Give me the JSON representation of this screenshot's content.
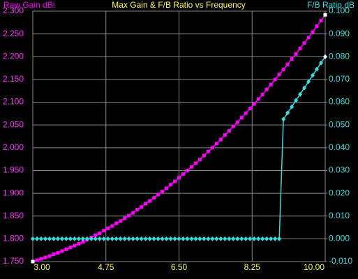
{
  "chart_data": {
    "type": "line",
    "title": "Max Gain & F/B Ratio vs Frequency",
    "ylabel": "Raw Gain dBi",
    "y2label": "F/B Ratio dB",
    "x": [
      3.0,
      3.1,
      3.2,
      3.3,
      3.4,
      3.5,
      3.6,
      3.7,
      3.8,
      3.9,
      4.0,
      4.1,
      4.2,
      4.3,
      4.4,
      4.5,
      4.6,
      4.7,
      4.8,
      4.9,
      5.0,
      5.1,
      5.2,
      5.3,
      5.4,
      5.5,
      5.6,
      5.7,
      5.8,
      5.9,
      6.0,
      6.1,
      6.2,
      6.3,
      6.4,
      6.5,
      6.6,
      6.7,
      6.8,
      6.9,
      7.0,
      7.1,
      7.2,
      7.3,
      7.4,
      7.5,
      7.6,
      7.7,
      7.8,
      7.9,
      8.0,
      8.1,
      8.2,
      8.3,
      8.4,
      8.5,
      8.6,
      8.7,
      8.8,
      8.9,
      9.0,
      9.1,
      9.2,
      9.3,
      9.4,
      9.5,
      9.6,
      9.7,
      9.8,
      9.9,
      10.0
    ],
    "series": [
      {
        "color": "#ff00ff",
        "marker": "square",
        "values": [
          1.75,
          1.753,
          1.756,
          1.759,
          1.762,
          1.766,
          1.769,
          1.773,
          1.777,
          1.781,
          1.785,
          1.789,
          1.793,
          1.798,
          1.803,
          1.808,
          1.812,
          1.818,
          1.823,
          1.828,
          1.834,
          1.839,
          1.845,
          1.851,
          1.857,
          1.864,
          1.87,
          1.877,
          1.883,
          1.89,
          1.897,
          1.904,
          1.911,
          1.919,
          1.926,
          1.934,
          1.942,
          1.95,
          1.958,
          1.966,
          1.974,
          1.983,
          1.992,
          2.0,
          2.009,
          2.018,
          2.028,
          2.037,
          2.047,
          2.056,
          2.066,
          2.076,
          2.086,
          2.096,
          2.107,
          2.117,
          2.128,
          2.139,
          2.15,
          2.161,
          2.172,
          2.183,
          2.195,
          2.206,
          2.218,
          2.23,
          2.242,
          2.254,
          2.267,
          2.279,
          2.292
        ]
      },
      {
        "color": "#33e0e0",
        "marker": "diamond",
        "axis": "y2",
        "values": [
          0,
          0,
          0,
          0,
          0,
          0,
          0,
          0,
          0,
          0,
          0,
          0,
          0,
          0,
          0,
          0,
          0,
          0,
          0,
          0,
          0,
          0,
          0,
          0,
          0,
          0,
          0,
          0,
          0,
          0,
          0,
          0,
          0,
          0,
          0,
          0,
          0,
          0,
          0,
          0,
          0,
          0,
          0,
          0,
          0,
          0,
          0,
          0,
          0,
          0,
          0,
          0,
          0,
          0,
          0,
          0,
          0,
          0,
          0,
          0,
          0.0525,
          0.0553,
          0.058,
          0.0608,
          0.0635,
          0.0663,
          0.069,
          0.0718,
          0.0745,
          0.0773,
          0.08
        ]
      }
    ],
    "xlim": [
      3,
      10
    ],
    "xticks": [
      {
        "value": 3,
        "label": "3.00"
      },
      {
        "value": 4.75,
        "label": "4.75"
      },
      {
        "value": 6.5,
        "label": "6.50"
      },
      {
        "value": 8.25,
        "label": "8.25"
      },
      {
        "value": 10,
        "label": "10.00"
      }
    ],
    "ylim": [
      1.75,
      2.3
    ],
    "yticks": [
      {
        "value": 1.75,
        "label": "1.750"
      },
      {
        "value": 1.8,
        "label": "1.800"
      },
      {
        "value": 1.85,
        "label": "1.850"
      },
      {
        "value": 1.9,
        "label": "1.900"
      },
      {
        "value": 1.95,
        "label": "1.950"
      },
      {
        "value": 2.0,
        "label": "2.000"
      },
      {
        "value": 2.05,
        "label": "2.050"
      },
      {
        "value": 2.1,
        "label": "2.100"
      },
      {
        "value": 2.15,
        "label": "2.150"
      },
      {
        "value": 2.2,
        "label": "2.200"
      },
      {
        "value": 2.25,
        "label": "2.250"
      },
      {
        "value": 2.3,
        "label": "2.300"
      }
    ],
    "y2lim": [
      -0.01,
      0.1
    ],
    "y2ticks": [
      {
        "value": -0.01,
        "label": "-0.010"
      },
      {
        "value": 0,
        "label": "0.000"
      },
      {
        "value": 0.01,
        "label": "0.010"
      },
      {
        "value": 0.02,
        "label": "0.020"
      },
      {
        "value": 0.03,
        "label": "0.030"
      },
      {
        "value": 0.04,
        "label": "0.040"
      },
      {
        "value": 0.05,
        "label": "0.050"
      },
      {
        "value": 0.06,
        "label": "0.060"
      },
      {
        "value": 0.07,
        "label": "0.070"
      },
      {
        "value": 0.08,
        "label": "0.080"
      },
      {
        "value": 0.09,
        "label": "0.090"
      },
      {
        "value": 0.1,
        "label": "0.100"
      }
    ],
    "grid": true
  }
}
